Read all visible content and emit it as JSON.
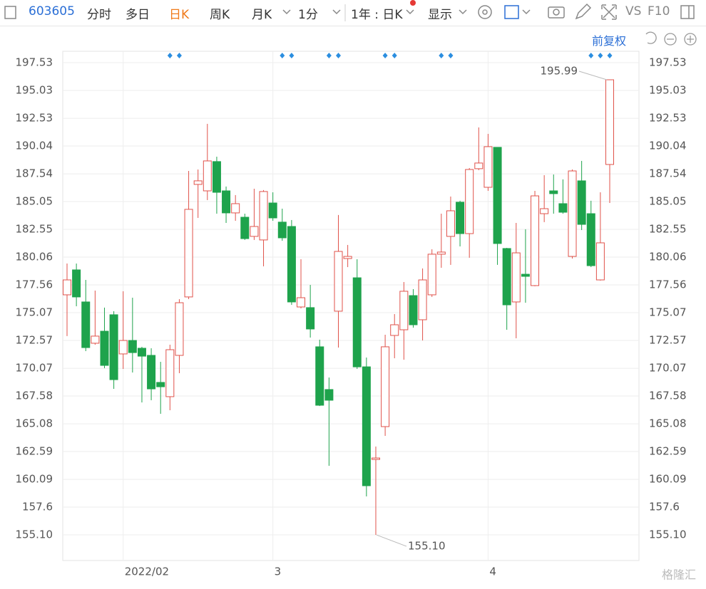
{
  "toolbar": {
    "code": "603605",
    "tabs": [
      "分时",
      "多日",
      "日K",
      "周K",
      "月K",
      "1分"
    ],
    "period": "1年 : 日K",
    "display": "显示",
    "vs": "VS",
    "f10": "F10"
  },
  "adjust": "前复权",
  "watermark": "格隆汇",
  "chart_data": {
    "type": "candlestick",
    "categories": [
      null,
      null,
      null,
      null,
      null,
      null,
      "2022/02",
      null,
      null,
      null,
      null,
      null,
      null,
      null,
      null,
      null,
      null,
      null,
      null,
      null,
      null,
      null,
      "3",
      null,
      null,
      null,
      null,
      null,
      null,
      null,
      null,
      null,
      null,
      null,
      null,
      null,
      null,
      null,
      null,
      null,
      null,
      null,
      null,
      null,
      null,
      "4",
      null,
      null,
      null,
      null,
      null,
      null,
      null,
      null,
      null,
      null,
      null,
      null,
      null
    ],
    "open": [
      176.67,
      178.91,
      176.03,
      172.32,
      173.4,
      174.88,
      171.36,
      172.57,
      171.87,
      171.23,
      168.8,
      167.52,
      171.23,
      176.48,
      186.59,
      186.01,
      188.64,
      186.01,
      184.03,
      183.64,
      181.92,
      181.6,
      184.92,
      183.2,
      182.81,
      175.58,
      175.52,
      172.0,
      168.16,
      175.2,
      179.93,
      178.2,
      170.2,
      161.88,
      164.83,
      173.02,
      173.53,
      176.6,
      174.43,
      176.67,
      180.32,
      181.92,
      184.99,
      182.17,
      188.0,
      186.33,
      189.92,
      180.83,
      176.03,
      178.52,
      177.5,
      183.96,
      186.01,
      184.86,
      180.12,
      186.91,
      183.96,
      178.01,
      188.38
    ],
    "high": [
      179.48,
      179.48,
      178.01,
      177.05,
      175.52,
      175.2,
      176.99,
      176.41,
      172.0,
      171.87,
      170.65,
      172.19,
      176.28,
      187.8,
      187.93,
      192.03,
      189.08,
      186.4,
      185.63,
      183.96,
      186.2,
      186.08,
      185.88,
      184.41,
      183.39,
      179.87,
      177.56,
      172.64,
      169.24,
      183.84,
      181.15,
      179.87,
      171.04,
      163.04,
      173.08,
      174.94,
      177.82,
      177.18,
      179.04,
      180.76,
      183.96,
      185.5,
      185.12,
      188.06,
      191.71,
      191.13,
      189.92,
      180.89,
      183.13,
      182.56,
      186.01,
      187.42,
      187.48,
      187.04,
      187.93,
      188.7,
      185.12,
      185.88,
      195.99
    ],
    "low": [
      172.96,
      175.64,
      171.61,
      172.19,
      170.08,
      168.22,
      170.01,
      169.69,
      167.0,
      167.2,
      165.98,
      166.3,
      169.63,
      176.28,
      183.58,
      185.18,
      183.96,
      183.13,
      183.32,
      181.6,
      181.6,
      179.23,
      183.32,
      181.53,
      175.77,
      175.45,
      172.83,
      166.68,
      161.31,
      171.93,
      179.16,
      170.01,
      158.56,
      155.1,
      164.0,
      170.97,
      170.84,
      173.72,
      172.57,
      176.48,
      179.1,
      179.36,
      181.02,
      180.0,
      187.87,
      186.01,
      179.36,
      173.53,
      172.76,
      175.96,
      177.44,
      183.2,
      183.96,
      183.96,
      179.93,
      182.49,
      179.16,
      177.95,
      184.92
    ],
    "close": [
      178.01,
      176.48,
      171.93,
      172.96,
      170.33,
      169.05,
      172.57,
      171.48,
      171.16,
      168.22,
      168.41,
      171.74,
      175.96,
      184.35,
      186.91,
      188.7,
      185.88,
      184.03,
      184.86,
      181.72,
      182.81,
      185.95,
      183.58,
      181.79,
      176.03,
      176.41,
      173.6,
      166.75,
      167.2,
      180.57,
      180.12,
      170.2,
      159.52,
      162.01,
      172.0,
      173.98,
      176.99,
      173.98,
      178.01,
      180.32,
      180.51,
      184.22,
      182.17,
      187.93,
      188.51,
      189.98,
      181.28,
      175.77,
      180.44,
      178.33,
      185.56,
      184.41,
      185.76,
      184.09,
      187.8,
      183.0,
      179.29,
      181.34,
      195.99
    ],
    "event": [
      false,
      false,
      false,
      false,
      false,
      false,
      false,
      false,
      false,
      false,
      false,
      true,
      true,
      false,
      false,
      false,
      false,
      false,
      false,
      false,
      false,
      false,
      false,
      true,
      true,
      false,
      false,
      false,
      true,
      true,
      false,
      false,
      false,
      false,
      true,
      true,
      false,
      false,
      false,
      false,
      true,
      true,
      false,
      false,
      false,
      false,
      false,
      false,
      false,
      false,
      false,
      false,
      false,
      false,
      false,
      false,
      true,
      true,
      true
    ],
    "up_color": "#e0524a",
    "down_color": "#1ea34c",
    "event_color": "#2b8ee0",
    "ylim": [
      152.8,
      198.55
    ],
    "yticks": [
      {
        "value": 155.1,
        "label": "155.10"
      },
      157.6,
      160.09,
      162.59,
      165.08,
      167.58,
      170.07,
      172.57,
      175.07,
      177.56,
      180.06,
      182.55,
      185.05,
      187.54,
      190.04,
      192.53,
      195.03,
      197.53
    ],
    "grid": true,
    "annotations": [
      {
        "label": "195.99",
        "value": 195.99
      },
      {
        "label": "155.10",
        "value": 155.1
      }
    ]
  }
}
